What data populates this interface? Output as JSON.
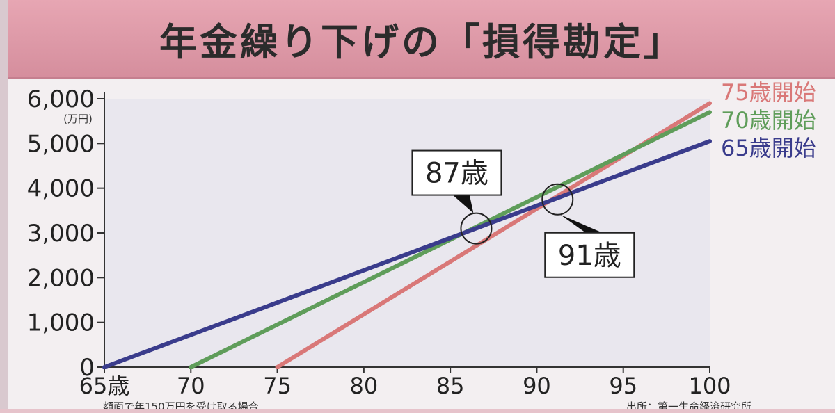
{
  "header": {
    "title": "年金繰り下げの「損得勘定」"
  },
  "chart_data": {
    "type": "line",
    "x": [
      65,
      70,
      75,
      80,
      85,
      90,
      95,
      100
    ],
    "xtick_labels": [
      "65歳",
      "70",
      "75",
      "80",
      "85",
      "90",
      "95",
      "100"
    ],
    "ytick_labels": [
      "0",
      "1,000",
      "2,000",
      "3,000",
      "4,000",
      "5,000",
      "6,000"
    ],
    "yticks": [
      0,
      1000,
      2000,
      3000,
      4000,
      5000,
      6000
    ],
    "yunit": "(万円)",
    "xlim": [
      65,
      100
    ],
    "ylim": [
      0,
      6000
    ],
    "grid": false,
    "series": [
      {
        "name": "75歳開始",
        "color": "#d97878",
        "points": [
          [
            75,
            0
          ],
          [
            100,
            5900
          ]
        ]
      },
      {
        "name": "70歳開始",
        "color": "#5f9d5a",
        "points": [
          [
            70,
            0
          ],
          [
            100,
            5700
          ]
        ]
      },
      {
        "name": "65歳開始",
        "color": "#3a3c8c",
        "points": [
          [
            65,
            0
          ],
          [
            100,
            5050
          ]
        ]
      }
    ],
    "annotations": [
      {
        "label": "87歳",
        "x": 86.5,
        "y": 3100
      },
      {
        "label": "91歳",
        "x": 91.2,
        "y": 3750
      }
    ],
    "footnote": "額面で年150万円を受け取る場合",
    "source": "出所：第一生命経済研究所"
  }
}
